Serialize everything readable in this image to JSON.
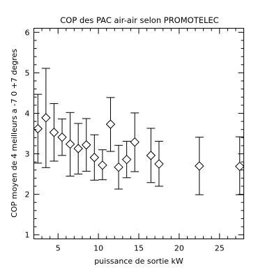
{
  "chart_data": {
    "type": "scatter",
    "title": "COP des PAC air-air selon PROMOTELEC",
    "xlabel": "puissance de sortie kW",
    "ylabel": "COP moyen de 4 meilleurs a -7 0 +7 degres",
    "xlim": [
      2,
      28
    ],
    "ylim": [
      0.9,
      6.1
    ],
    "xticks_major": [
      5,
      10,
      15,
      20,
      25
    ],
    "xticks_major_labels": [
      "5",
      "10",
      "15",
      "20",
      "25"
    ],
    "yticks_major": [
      1,
      2,
      3,
      4,
      5,
      6
    ],
    "yticks_major_labels": [
      "1",
      "2",
      "3",
      "4",
      "5",
      "6"
    ],
    "grid": false,
    "legend": "none",
    "marker": "diamond-open",
    "color": "#000000",
    "points": [
      {
        "x": 2.5,
        "y": 3.62,
        "low": 2.77,
        "high": 4.47
      },
      {
        "x": 3.5,
        "y": 3.89,
        "low": 2.66,
        "high": 5.11
      },
      {
        "x": 4.5,
        "y": 3.53,
        "low": 2.82,
        "high": 4.24
      },
      {
        "x": 5.5,
        "y": 3.41,
        "low": 2.96,
        "high": 3.86
      },
      {
        "x": 6.5,
        "y": 3.24,
        "low": 2.45,
        "high": 4.02
      },
      {
        "x": 7.5,
        "y": 3.13,
        "low": 2.5,
        "high": 3.75
      },
      {
        "x": 8.5,
        "y": 3.22,
        "low": 2.57,
        "high": 3.87
      },
      {
        "x": 9.5,
        "y": 2.91,
        "low": 2.35,
        "high": 3.47
      },
      {
        "x": 10.5,
        "y": 2.72,
        "low": 2.36,
        "high": 3.1
      },
      {
        "x": 11.5,
        "y": 3.73,
        "low": 3.06,
        "high": 4.39
      },
      {
        "x": 12.5,
        "y": 2.67,
        "low": 2.13,
        "high": 3.21
      },
      {
        "x": 13.5,
        "y": 2.86,
        "low": 2.41,
        "high": 3.31
      },
      {
        "x": 14.5,
        "y": 3.29,
        "low": 2.56,
        "high": 4.01
      },
      {
        "x": 16.5,
        "y": 2.96,
        "low": 2.29,
        "high": 3.63
      },
      {
        "x": 17.5,
        "y": 2.75,
        "low": 2.2,
        "high": 3.31
      },
      {
        "x": 22.5,
        "y": 2.7,
        "low": 1.99,
        "high": 3.41
      },
      {
        "x": 27.5,
        "y": 2.69,
        "low": 1.99,
        "high": 3.42
      }
    ]
  }
}
